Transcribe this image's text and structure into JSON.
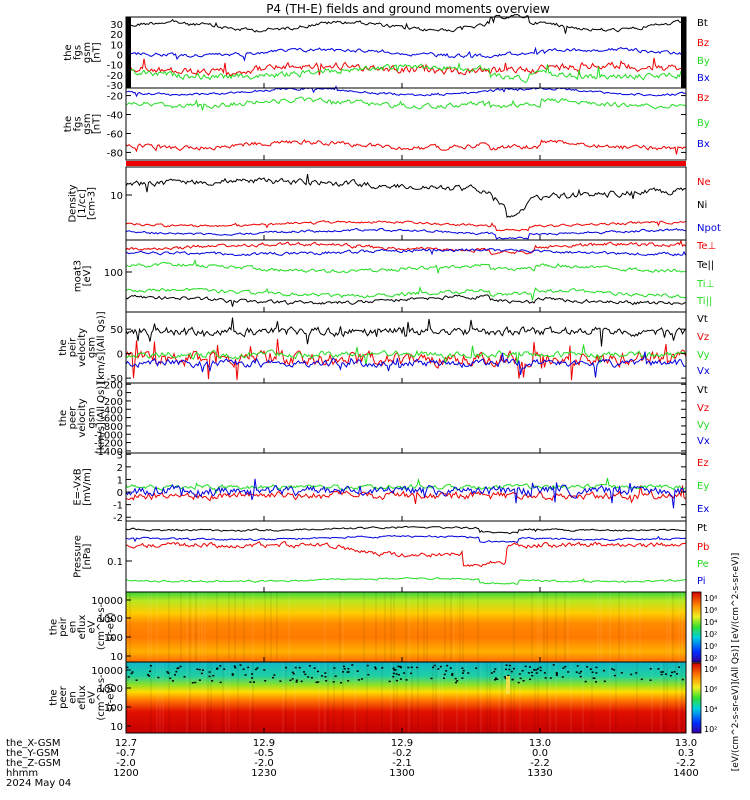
{
  "title": "P4 (TH-E) fields and ground moments overview",
  "colors": {
    "black": "#000000",
    "red": "#ee0000",
    "green": "#22dd22",
    "blue": "#0000dd",
    "bar_red": "#ee0000"
  },
  "chart_data": [
    {
      "type": "line",
      "id": "fgs_gsm",
      "ylabel": [
        "the",
        "fgs",
        "gsm",
        "[nT]"
      ],
      "ylim": [
        -33,
        37
      ],
      "yticks": [
        30,
        20,
        10,
        0,
        -10,
        -20,
        -30
      ],
      "series": [
        {
          "name": "Bt",
          "color": "black",
          "level": 28,
          "noise": 3
        },
        {
          "name": "Bz",
          "color": "red",
          "level": -14,
          "noise": 6
        },
        {
          "name": "By",
          "color": "green",
          "level": -17,
          "noise": 5
        },
        {
          "name": "Bx",
          "color": "blue",
          "level": 2,
          "noise": 3
        }
      ]
    },
    {
      "type": "line",
      "id": "fgs_gsm_2",
      "ylabel": [
        "the",
        "fgs",
        "gsm",
        "[nT]"
      ],
      "ylim": [
        -88,
        -12
      ],
      "yticks": [
        -20,
        -40,
        -60,
        -80
      ],
      "series": [
        {
          "name": "Bz",
          "color": "red",
          "level": -72,
          "noise": 4
        },
        {
          "name": "By",
          "color": "green",
          "level": -28,
          "noise": 4
        },
        {
          "name": "Bx",
          "color": "blue",
          "level": -16,
          "noise": 2
        }
      ]
    },
    {
      "type": "line",
      "id": "density",
      "ylabel": [
        "Density",
        "[1/cc]",
        "[cm-3]"
      ],
      "yticks_text": [
        "10"
      ],
      "series": [
        {
          "name": "Ne",
          "color": "red"
        },
        {
          "name": "Ni",
          "color": "black"
        },
        {
          "name": "Npot",
          "color": "blue"
        }
      ]
    },
    {
      "type": "line",
      "id": "temperature",
      "ylabel": [
        "moat3",
        "[eV]"
      ],
      "yticks_text": [
        "100"
      ],
      "series": [
        {
          "name": "Te⊥",
          "color": "red"
        },
        {
          "name": "Te||",
          "color": "black"
        },
        {
          "name": "Ti⊥",
          "color": "green"
        },
        {
          "name": "Ti||",
          "color": "green"
        }
      ]
    },
    {
      "type": "line",
      "id": "peir_velocity",
      "ylabel": [
        "the",
        "peir",
        "velocity",
        "gsm",
        "[km/s](All Qs)]"
      ],
      "ylim": [
        -60,
        85
      ],
      "yticks": [
        50,
        0,
        -50
      ],
      "series": [
        {
          "name": "Vt",
          "color": "black",
          "level": 45,
          "noise": 14
        },
        {
          "name": "Vz",
          "color": "red",
          "level": -10,
          "noise": 22
        },
        {
          "name": "Vy",
          "color": "green",
          "level": -2,
          "noise": 10
        },
        {
          "name": "Vx",
          "color": "blue",
          "level": -20,
          "noise": 12
        }
      ]
    },
    {
      "type": "line",
      "id": "peer_velocity",
      "ylabel": [
        "the",
        "peer",
        "velocity",
        "gsm",
        "[km/s](All Qs)]"
      ],
      "ylim": [
        -1450,
        230
      ],
      "yticks": [
        200,
        0,
        -200,
        -400,
        -600,
        -800,
        -1000,
        -1200,
        -1400
      ],
      "series": [
        {
          "name": "Vt",
          "color": "black"
        },
        {
          "name": "Vz",
          "color": "red"
        },
        {
          "name": "Vy",
          "color": "green"
        },
        {
          "name": "Vx",
          "color": "blue"
        }
      ]
    },
    {
      "type": "line",
      "id": "efield",
      "ylabel": [
        "E=-VxB",
        "[mV/m]"
      ],
      "ylim": [
        -2.3,
        3.1
      ],
      "yticks": [
        3,
        2,
        1,
        0,
        -1,
        -2
      ],
      "series": [
        {
          "name": "Ez",
          "color": "red",
          "level": -0.3,
          "noise": 0.5
        },
        {
          "name": "Ey",
          "color": "green",
          "level": 0.4,
          "noise": 0.3
        },
        {
          "name": "Ex",
          "color": "blue",
          "level": 0.1,
          "noise": 0.6
        }
      ]
    },
    {
      "type": "line",
      "id": "pressure",
      "ylabel": [
        "Pressure",
        "[nPa]"
      ],
      "yticks_text": [
        "0.1"
      ],
      "series": [
        {
          "name": "Pt",
          "color": "black"
        },
        {
          "name": "Pb",
          "color": "red"
        },
        {
          "name": "Pe",
          "color": "green"
        },
        {
          "name": "Pi",
          "color": "blue"
        }
      ]
    },
    {
      "type": "heatmap",
      "id": "peir_eflux",
      "ylabel": [
        "the",
        "peir",
        "en",
        "eflux",
        "eV",
        "(cm^2-s-",
        "sr-eV)"
      ],
      "yticks": [
        "10000",
        "1000",
        "100",
        "10"
      ]
    },
    {
      "type": "heatmap",
      "id": "peer_eflux",
      "ylabel": [
        "the",
        "peer",
        "en",
        "eflux",
        "eV",
        "(cm^2-s-",
        "sr-eV)"
      ],
      "yticks": [
        "10000",
        "1000",
        "100",
        "10"
      ]
    }
  ],
  "colorbar": {
    "ticks_top": [
      "10⁸",
      "10⁶",
      "10⁴",
      "10²",
      "10⁰",
      "10²"
    ],
    "ticks_bottom": [
      "10⁸",
      "10⁶",
      "10⁴",
      "10²"
    ],
    "label": "[eV/(cm^2-s-sr-eV)](All Qs)] [eV/(cm^2-s-sr-eV)]"
  },
  "xaxis": {
    "row_labels": [
      "the_X-GSM",
      "the_Y-GSM",
      "the_Z-GSM",
      "hhmm",
      "2024 May 04"
    ],
    "columns": [
      [
        "12.7",
        "-0.7",
        "-2.0",
        "1200"
      ],
      [
        "12.9",
        "-0.5",
        "-2.0",
        "1230"
      ],
      [
        "12.9",
        "-0.2",
        "-2.1",
        "1300"
      ],
      [
        "13.0",
        "0.0",
        "-2.2",
        "1330"
      ],
      [
        "13.0",
        "0.3",
        "-2.2",
        "1400"
      ]
    ]
  }
}
